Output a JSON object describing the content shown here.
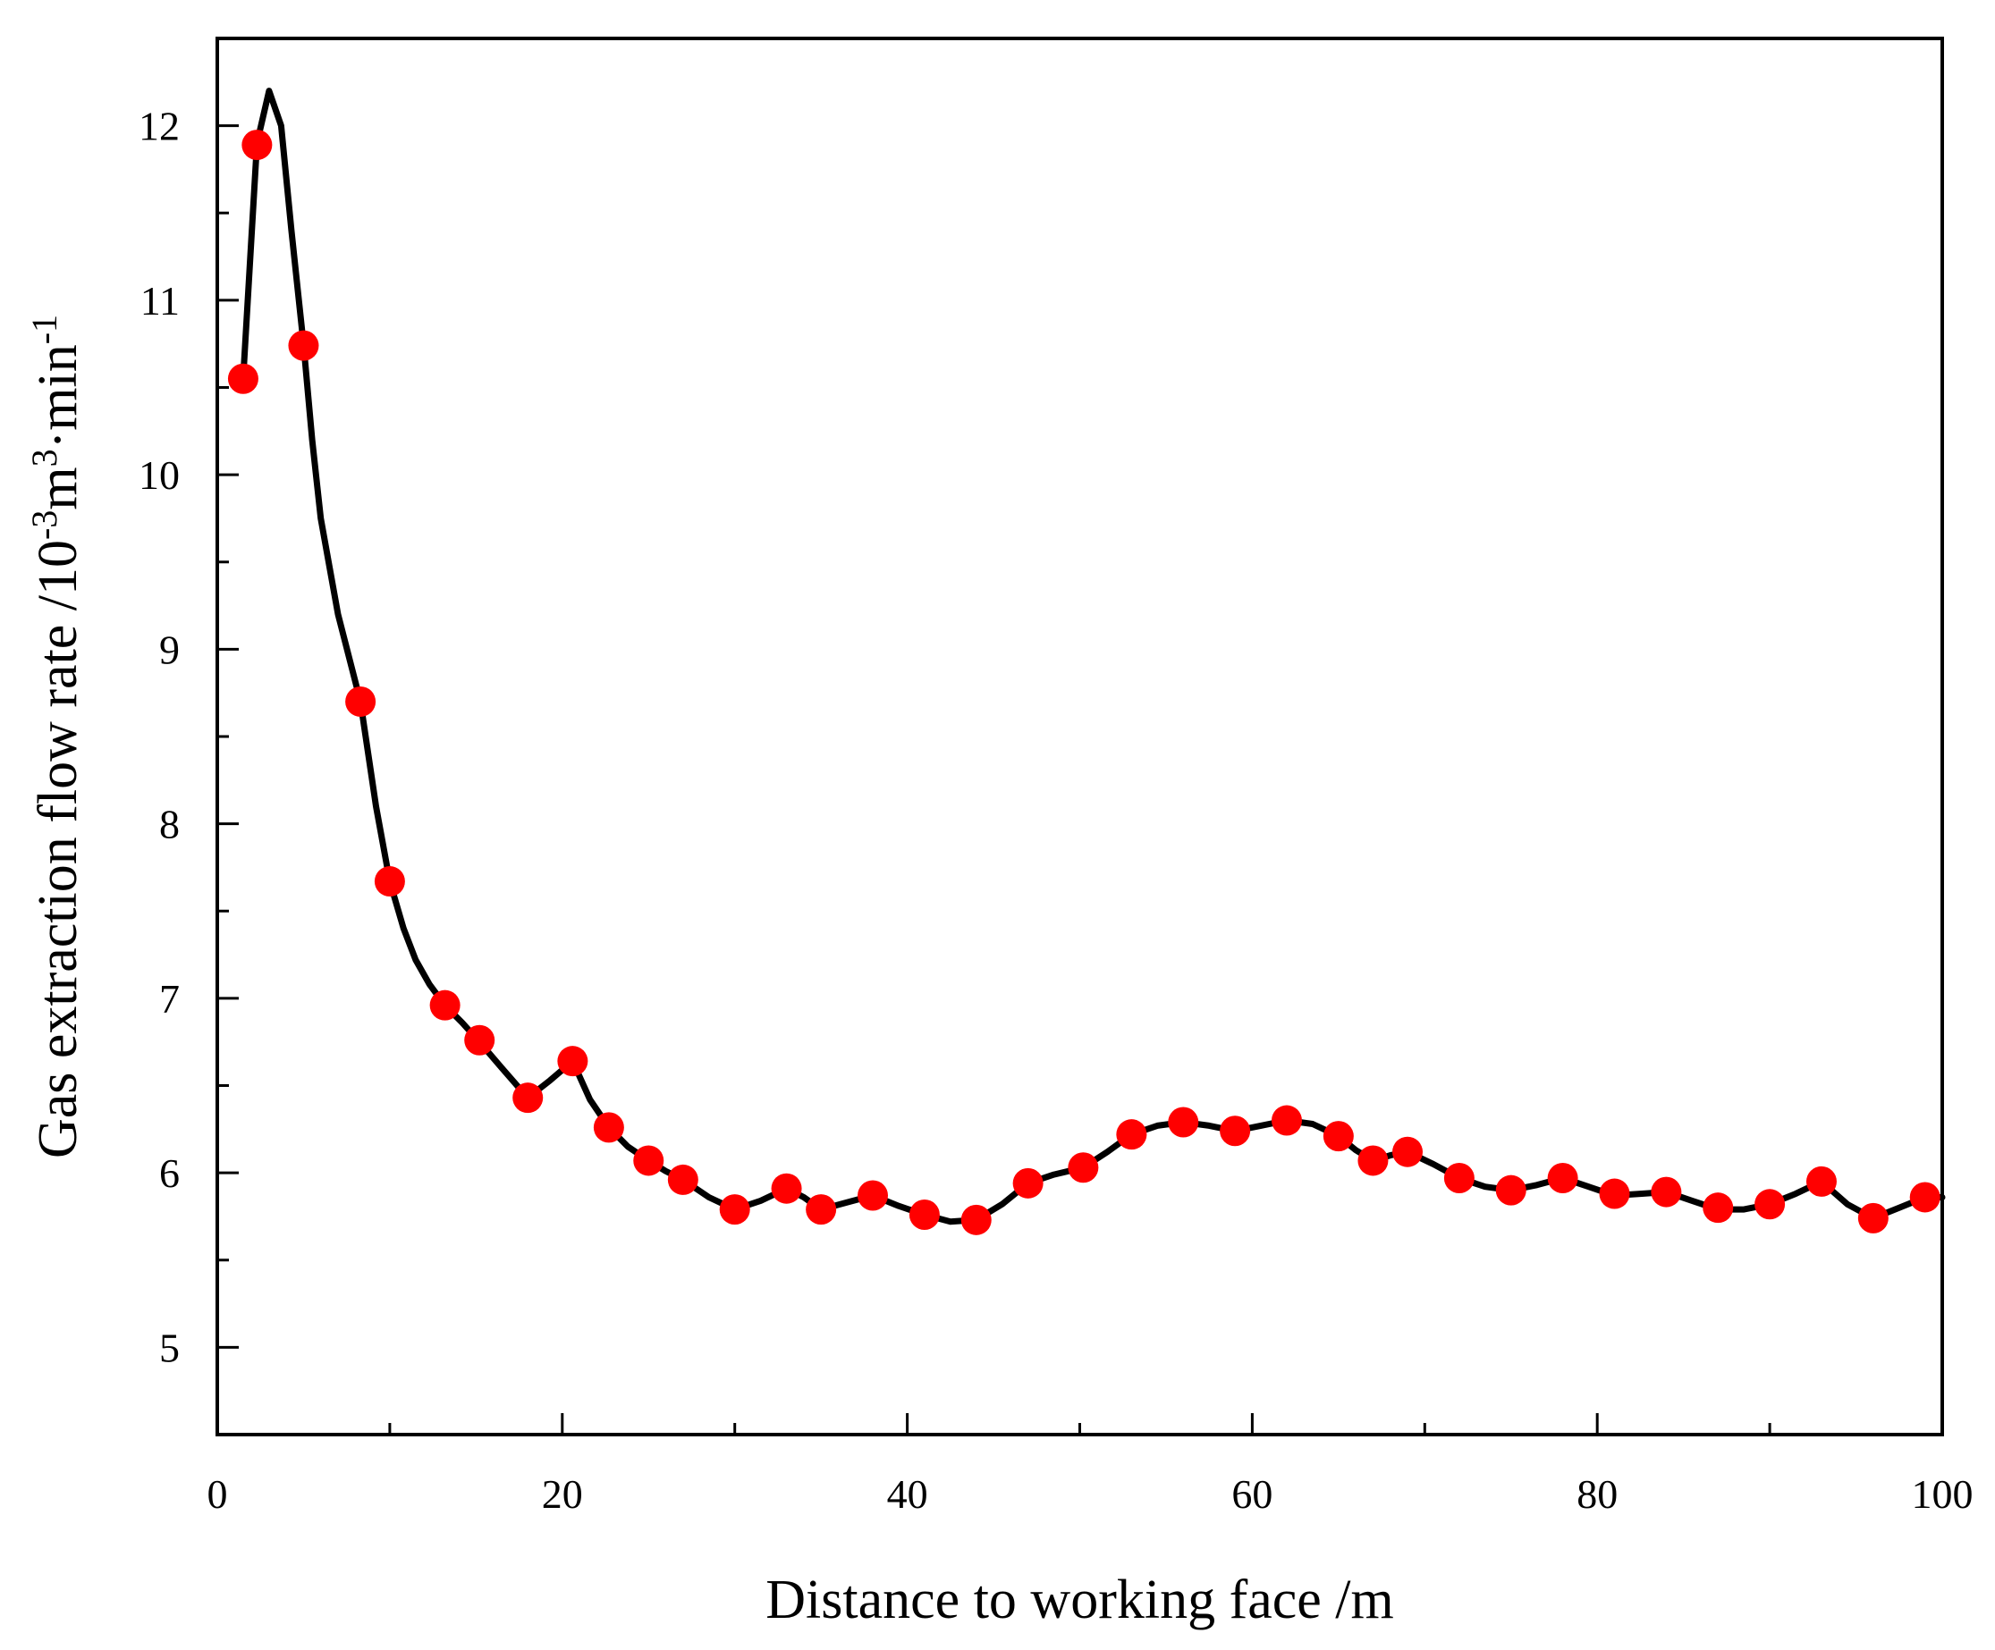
{
  "chart_data": {
    "type": "line",
    "title": "",
    "xlabel": "Distance to working face /m",
    "ylabel": {
      "parts": [
        {
          "text": "Gas extraction flow rate  /10",
          "sup": false
        },
        {
          "text": "-3",
          "sup": true
        },
        {
          "text": "m",
          "sup": false
        },
        {
          "text": "3",
          "sup": true
        },
        {
          "text": "·min",
          "sup": false
        },
        {
          "text": "-1",
          "sup": true
        }
      ]
    },
    "xlim": [
      0,
      100
    ],
    "ylim": [
      4.5,
      12.5
    ],
    "x_ticks": [
      0,
      20,
      40,
      60,
      80,
      100
    ],
    "x_minor_ticks": [
      10,
      30,
      50,
      70,
      90
    ],
    "y_ticks": [
      5,
      6,
      7,
      8,
      9,
      10,
      11,
      12
    ],
    "y_minor_ticks": [
      5.5,
      6.5,
      7.5,
      8.5,
      9.5,
      10.5,
      11.5
    ],
    "grid": false,
    "legend": "none",
    "colors": {
      "line": "#000000",
      "marker": "#ff0000"
    },
    "series": [
      {
        "style": "line",
        "x": [
          1.5,
          2.3,
          3.0,
          3.7,
          4.3,
          5.0,
          5.5,
          6.0,
          7.0,
          8.3,
          9.2,
          10.0,
          10.8,
          11.5,
          12.3,
          13.2,
          14.2,
          15.2,
          16.5,
          18.0,
          19.3,
          20.6,
          21.6,
          22.7,
          23.8,
          25.0,
          26.0,
          27.0,
          28.5,
          30.0,
          31.5,
          33.0,
          34.0,
          35.0,
          36.5,
          38.0,
          39.5,
          41.0,
          42.5,
          44.0,
          45.5,
          47.0,
          48.5,
          50.2,
          51.6,
          53.0,
          54.5,
          56.0,
          57.5,
          59.0,
          60.5,
          62.0,
          63.5,
          65.0,
          66.0,
          67.0,
          68.0,
          69.0,
          70.5,
          72.0,
          73.5,
          75.0,
          76.5,
          78.0,
          79.5,
          81.0,
          82.5,
          84.0,
          85.5,
          87.0,
          88.5,
          90.0,
          91.5,
          93.0,
          94.5,
          96.0,
          97.5,
          99.0,
          100.0
        ],
        "y": [
          10.55,
          11.9,
          12.2,
          12.0,
          11.4,
          10.75,
          10.2,
          9.75,
          9.2,
          8.7,
          8.1,
          7.67,
          7.4,
          7.22,
          7.08,
          6.96,
          6.86,
          6.75,
          6.6,
          6.43,
          6.53,
          6.64,
          6.42,
          6.26,
          6.15,
          6.07,
          6.01,
          5.96,
          5.86,
          5.79,
          5.84,
          5.91,
          5.86,
          5.79,
          5.83,
          5.87,
          5.81,
          5.76,
          5.72,
          5.73,
          5.82,
          5.94,
          5.99,
          6.03,
          6.12,
          6.22,
          6.27,
          6.29,
          6.27,
          6.24,
          6.27,
          6.3,
          6.28,
          6.21,
          6.13,
          6.07,
          6.1,
          6.12,
          6.05,
          5.97,
          5.92,
          5.9,
          5.93,
          5.97,
          5.92,
          5.87,
          5.88,
          5.89,
          5.84,
          5.79,
          5.79,
          5.82,
          5.88,
          5.95,
          5.82,
          5.74,
          5.8,
          5.86,
          5.86
        ]
      },
      {
        "style": "scatter",
        "x": [
          1.5,
          2.3,
          5.0,
          8.3,
          10.0,
          13.2,
          15.2,
          18.0,
          20.6,
          22.7,
          25.0,
          27.0,
          30.0,
          33.0,
          35.0,
          38.0,
          41.0,
          44.0,
          47.0,
          50.2,
          53.0,
          56.0,
          59.0,
          62.0,
          65.0,
          67.0,
          69.0,
          72.0,
          75.0,
          78.0,
          81.0,
          84.0,
          87.0,
          90.0,
          93.0,
          96.0,
          99.0
        ],
        "y": [
          10.55,
          11.89,
          10.74,
          8.7,
          7.67,
          6.96,
          6.76,
          6.43,
          6.64,
          6.26,
          6.07,
          5.96,
          5.79,
          5.91,
          5.79,
          5.87,
          5.76,
          5.73,
          5.94,
          6.03,
          6.22,
          6.29,
          6.24,
          6.3,
          6.21,
          6.07,
          6.12,
          5.97,
          5.9,
          5.97,
          5.88,
          5.89,
          5.8,
          5.82,
          5.95,
          5.74,
          5.86
        ]
      }
    ]
  }
}
